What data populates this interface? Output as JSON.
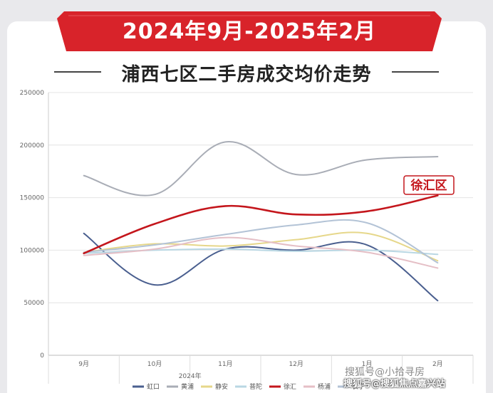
{
  "banner": {
    "text": "2024年9月-2025年2月",
    "color": "#d8232a"
  },
  "title": "浦西七区二手房成交均价走势",
  "chart_data": {
    "type": "line",
    "categories": [
      "9月",
      "10月",
      "11月",
      "12月",
      "1月",
      "2月"
    ],
    "year_label": "2024年",
    "yticks": [
      0,
      50000,
      100000,
      150000,
      200000,
      250000
    ],
    "ylim": [
      0,
      250000
    ],
    "grid": true,
    "legend_position": "bottom",
    "series": [
      {
        "name": "虹口",
        "color": "#4a5f8f",
        "values": [
          116000,
          67000,
          101000,
          100000,
          105000,
          52000
        ]
      },
      {
        "name": "黄浦",
        "color": "#a9adb6",
        "values": [
          171000,
          153000,
          203000,
          172000,
          186000,
          189000
        ]
      },
      {
        "name": "静安",
        "color": "#e6d78a",
        "values": [
          98000,
          106000,
          104000,
          110000,
          116000,
          90000
        ]
      },
      {
        "name": "普陀",
        "color": "#b9d7e3",
        "values": [
          97000,
          100000,
          101000,
          99000,
          100000,
          96000
        ]
      },
      {
        "name": "徐汇",
        "color": "#c4161c",
        "values": [
          97000,
          125000,
          142000,
          134000,
          137000,
          152000
        ]
      },
      {
        "name": "杨浦",
        "color": "#e5bfc6",
        "values": [
          95000,
          101000,
          112000,
          104000,
          98000,
          83000
        ]
      },
      {
        "name": "长宁",
        "color": "#b3c3d6",
        "values": [
          98000,
          105000,
          115000,
          124000,
          126000,
          88000
        ]
      }
    ],
    "annotation": {
      "text": "徐汇区",
      "series": "徐汇",
      "color": "#c4161c"
    }
  },
  "watermark": {
    "top": "搜狐号@小拾寻房",
    "bottom": "搜狐号@搜狐焦点嘉兴站"
  }
}
